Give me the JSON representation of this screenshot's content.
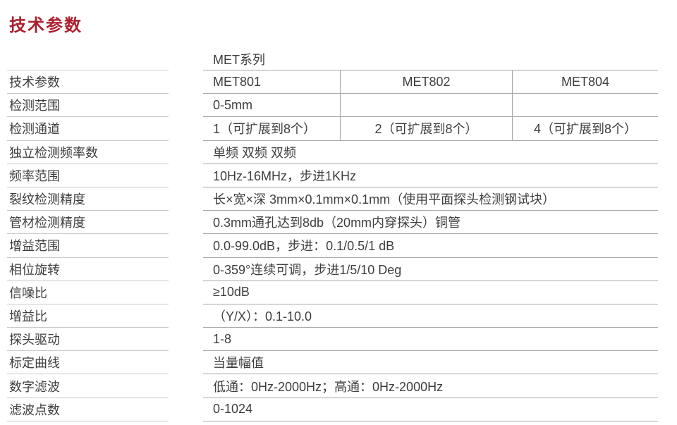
{
  "page": {
    "title": "技术参数"
  },
  "table": {
    "series_header": "MET系列",
    "param_labels": [
      "技术参数",
      "检测范围",
      "检测通道",
      "独立检测频率数",
      "频率范围",
      "裂纹检测精度",
      "管材检测精度",
      "增益范围",
      "相位旋转",
      "信噪比",
      "增益比",
      "探头驱动",
      "标定曲线",
      "数字滤波",
      "滤波点数"
    ],
    "header_row": {
      "col1": "MET801",
      "col2": "MET802",
      "col3": "MET804"
    },
    "range_row": {
      "col1": "0-5mm",
      "col2": "",
      "col3": ""
    },
    "channel_row": {
      "col1": "1（可扩展到8个）",
      "col2": "2（可扩展到8个）",
      "col3": "4（可扩展到8个）"
    },
    "span_rows": [
      "单频 双频 双频",
      "10Hz-16MHz，步进1KHz",
      "长×宽×深 3mm×0.1mm×0.1mm（使用平面探头检测钢试块）",
      "0.3mm通孔达到8db（20mm内穿探头）铜管",
      "0.0-99.0dB，步进：0.1/0.5/1 dB",
      "0-359°连续可调，步进1/5/10 Deg",
      "≥10dB",
      "（Y/X）：0.1-10.0",
      "1-8",
      "当量幅值",
      "低通：0Hz-2000Hz；高通：0Hz-2000Hz",
      "0-1024"
    ]
  },
  "colors": {
    "title": "#ad1f2d",
    "text": "#3e3e3e",
    "table_line": "#a8a8a8",
    "label_line": "#c9c9c9",
    "background": "#ffffff"
  }
}
